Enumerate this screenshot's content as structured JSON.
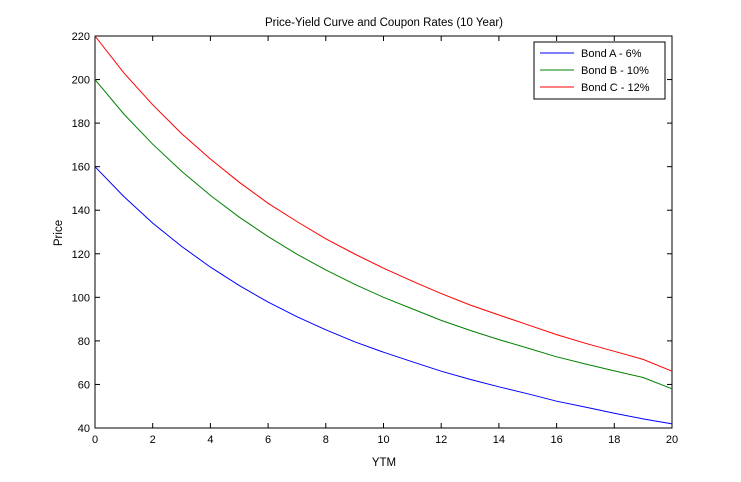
{
  "chart_data": {
    "type": "line",
    "title": "Price-Yield Curve and Coupon Rates (10 Year)",
    "xlabel": "YTM",
    "ylabel": "Price",
    "xlim": [
      0,
      20
    ],
    "ylim": [
      40,
      220
    ],
    "x_ticks": [
      0,
      2,
      4,
      6,
      8,
      10,
      12,
      14,
      16,
      18,
      20
    ],
    "y_ticks": [
      40,
      60,
      80,
      100,
      120,
      140,
      160,
      180,
      200,
      220
    ],
    "grid": false,
    "legend_position": "top-right",
    "x": [
      0,
      1,
      2,
      3,
      4,
      5,
      6,
      7,
      8,
      9,
      10,
      11,
      12,
      13,
      14,
      15,
      16,
      17,
      18,
      19,
      20
    ],
    "series": [
      {
        "name": "Bond A - 6%",
        "color": "#0000ff",
        "values": [
          160,
          146.3,
          134.1,
          123.4,
          113.9,
          105.4,
          97.8,
          91.1,
          85.1,
          79.6,
          74.8,
          70.4,
          66.1,
          62.3,
          58.9,
          55.7,
          52.3,
          49.6,
          46.8,
          44.2,
          41.9
        ]
      },
      {
        "name": "Bond B - 10%",
        "color": "#008000",
        "values": [
          200,
          184.2,
          170.3,
          157.9,
          146.8,
          136.8,
          127.9,
          119.8,
          112.6,
          106.0,
          100.0,
          94.7,
          89.4,
          84.8,
          80.6,
          76.7,
          72.7,
          69.4,
          66.2,
          63.2,
          58.0
        ]
      },
      {
        "name": "Bond C - 12%",
        "color": "#ff0000",
        "values": [
          220,
          203.1,
          188.4,
          175.2,
          163.5,
          152.8,
          143.2,
          134.8,
          126.9,
          119.9,
          113.4,
          107.4,
          101.7,
          96.5,
          91.9,
          87.4,
          82.9,
          78.9,
          75.2,
          71.5,
          66.1
        ]
      }
    ]
  }
}
